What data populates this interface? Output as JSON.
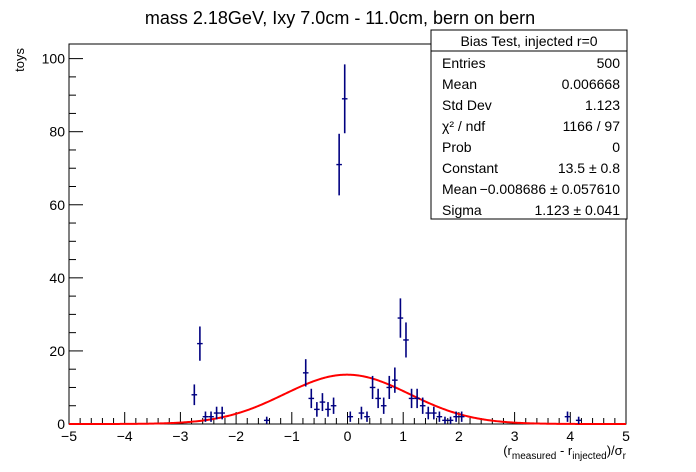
{
  "chart_data": {
    "type": "scatter",
    "title": "mass 2.18GeV, Ixy 7.0cm - 11.0cm, bern on bern",
    "ylabel": "toys",
    "xlabel": {
      "open": "(r",
      "sub1": "measured",
      "mid": " - r",
      "sub2": "injected",
      "close": ")/σ",
      "sub3": "r"
    },
    "xlim": [
      -5,
      5
    ],
    "ylim": [
      0,
      104
    ],
    "x_ticks": [
      "−5",
      "−4",
      "−3",
      "−2",
      "−1",
      "0",
      "1",
      "2",
      "3",
      "4",
      "5"
    ],
    "y_ticks": [
      "0",
      "20",
      "40",
      "60",
      "80",
      "100"
    ],
    "bin_width": 0.1,
    "series": [
      {
        "kind": "histogram-errorbars",
        "color": "#000080",
        "points": [
          {
            "x": -2.75,
            "y": 8
          },
          {
            "x": -2.65,
            "y": 22
          },
          {
            "x": -2.55,
            "y": 2
          },
          {
            "x": -2.45,
            "y": 2
          },
          {
            "x": -2.35,
            "y": 3
          },
          {
            "x": -2.25,
            "y": 3
          },
          {
            "x": -1.45,
            "y": 1
          },
          {
            "x": -0.75,
            "y": 14
          },
          {
            "x": -0.65,
            "y": 7
          },
          {
            "x": -0.55,
            "y": 4
          },
          {
            "x": -0.45,
            "y": 6
          },
          {
            "x": -0.35,
            "y": 4
          },
          {
            "x": -0.25,
            "y": 5
          },
          {
            "x": -0.15,
            "y": 71
          },
          {
            "x": -0.05,
            "y": 89
          },
          {
            "x": 0.05,
            "y": 2
          },
          {
            "x": 0.25,
            "y": 3
          },
          {
            "x": 0.35,
            "y": 2
          },
          {
            "x": 0.45,
            "y": 10
          },
          {
            "x": 0.55,
            "y": 7
          },
          {
            "x": 0.65,
            "y": 5
          },
          {
            "x": 0.75,
            "y": 10
          },
          {
            "x": 0.85,
            "y": 12
          },
          {
            "x": 0.95,
            "y": 29
          },
          {
            "x": 1.05,
            "y": 23
          },
          {
            "x": 1.15,
            "y": 7
          },
          {
            "x": 1.25,
            "y": 7
          },
          {
            "x": 1.35,
            "y": 5
          },
          {
            "x": 1.45,
            "y": 3
          },
          {
            "x": 1.55,
            "y": 3
          },
          {
            "x": 1.65,
            "y": 2
          },
          {
            "x": 1.75,
            "y": 1
          },
          {
            "x": 1.85,
            "y": 1
          },
          {
            "x": 1.95,
            "y": 2
          },
          {
            "x": 2.05,
            "y": 2
          },
          {
            "x": 3.95,
            "y": 2
          },
          {
            "x": 4.15,
            "y": 1
          }
        ]
      },
      {
        "kind": "gaussian-fit",
        "color": "#ff0000",
        "constant": 13.5,
        "mean": -0.008686,
        "sigma": 1.123
      }
    ],
    "stats_box": {
      "title": "Bias Test, injected r=0",
      "rows": [
        {
          "label": "Entries",
          "value": "500"
        },
        {
          "label": "Mean",
          "value": "0.006668"
        },
        {
          "label": "Std Dev",
          "value": "1.123"
        },
        {
          "label": "χ² / ndf",
          "value": "1166 / 97"
        },
        {
          "label": "Prob",
          "value": "0"
        },
        {
          "label": "Constant",
          "value": "13.5 ± 0.8"
        },
        {
          "label": "Mean",
          "value": "−0.008686 ± 0.057610"
        },
        {
          "label": "Sigma",
          "value": "1.123 ± 0.041"
        }
      ]
    }
  }
}
